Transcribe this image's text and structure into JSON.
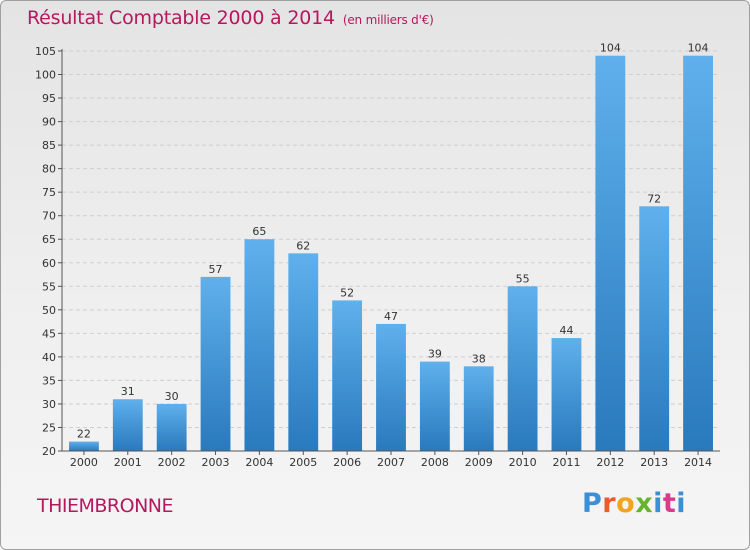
{
  "title": "Résultat Comptable 2000 à 2014",
  "subtitle": "(en milliers d'€)",
  "commune": "THIEMBRONNE",
  "logo_text": "Proxiti",
  "colors": {
    "title": "#b5185f",
    "bar_top": "#5fb0ec",
    "bar_bottom": "#2979bd"
  },
  "chart_data": {
    "type": "bar",
    "title": "Résultat Comptable 2000 à 2014",
    "subtitle": "(en milliers d'€)",
    "categories": [
      "2000",
      "2001",
      "2002",
      "2003",
      "2004",
      "2005",
      "2006",
      "2007",
      "2008",
      "2009",
      "2010",
      "2011",
      "2012",
      "2013",
      "2014"
    ],
    "values": [
      22,
      31,
      30,
      57,
      65,
      62,
      52,
      47,
      39,
      38,
      55,
      44,
      104,
      72,
      104
    ],
    "ylim": [
      20,
      105
    ],
    "yticks": [
      20,
      25,
      30,
      35,
      40,
      45,
      50,
      55,
      60,
      65,
      70,
      75,
      80,
      85,
      90,
      95,
      100,
      105
    ],
    "grid": true,
    "xlabel": "",
    "ylabel": ""
  }
}
